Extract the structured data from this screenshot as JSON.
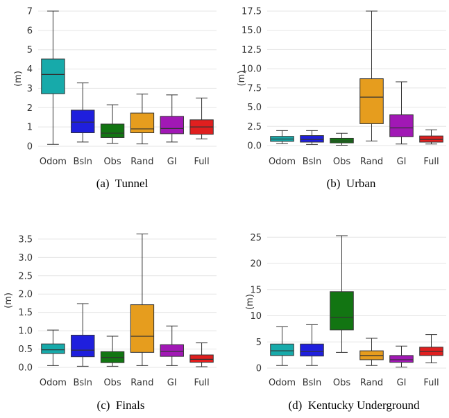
{
  "chart_data": [
    {
      "type": "box",
      "panel_key": "a",
      "caption": "(a)  Tunnel",
      "ylabel": "(m)",
      "ylim": [
        0,
        7
      ],
      "yticks": [
        "0",
        "1",
        "2",
        "3",
        "4",
        "5",
        "6",
        "7"
      ],
      "ytick_values": [
        0,
        1,
        2,
        3,
        4,
        5,
        6,
        7
      ],
      "categories": [
        "Odom",
        "Bsln",
        "Obs",
        "Rand",
        "GI",
        "Full"
      ],
      "boxes": [
        {
          "min": 0.1,
          "q1": 2.72,
          "median": 3.72,
          "q3": 4.52,
          "max": 7.0
        },
        {
          "min": 0.22,
          "q1": 0.7,
          "median": 1.25,
          "q3": 1.87,
          "max": 3.28
        },
        {
          "min": 0.15,
          "q1": 0.45,
          "median": 0.68,
          "q3": 1.15,
          "max": 2.15
        },
        {
          "min": 0.12,
          "q1": 0.7,
          "median": 0.9,
          "q3": 1.72,
          "max": 2.7
        },
        {
          "min": 0.22,
          "q1": 0.65,
          "median": 0.92,
          "q3": 1.55,
          "max": 2.66
        },
        {
          "min": 0.38,
          "q1": 0.62,
          "median": 1.0,
          "q3": 1.37,
          "max": 2.5
        }
      ]
    },
    {
      "type": "box",
      "panel_key": "b",
      "caption": "(b)  Urban",
      "ylabel": "(m)",
      "ylim": [
        0,
        17.5
      ],
      "yticks": [
        "0.0",
        "2.5",
        "5.0",
        "7.5",
        "10.0",
        "12.5",
        "15.0",
        "17.5"
      ],
      "ytick_values": [
        0,
        2.5,
        5,
        7.5,
        10,
        12.5,
        15,
        17.5
      ],
      "categories": [
        "Odom",
        "Bsln",
        "Obs",
        "Rand",
        "GI",
        "Full"
      ],
      "boxes": [
        {
          "min": 0.25,
          "q1": 0.55,
          "median": 0.85,
          "q3": 1.2,
          "max": 1.95
        },
        {
          "min": 0.15,
          "q1": 0.45,
          "median": 0.8,
          "q3": 1.3,
          "max": 1.95
        },
        {
          "min": 0.05,
          "q1": 0.35,
          "median": 0.6,
          "q3": 0.95,
          "max": 1.6
        },
        {
          "min": 0.6,
          "q1": 2.85,
          "median": 6.3,
          "q3": 8.7,
          "max": 17.5
        },
        {
          "min": 0.2,
          "q1": 1.15,
          "median": 2.3,
          "q3": 4.0,
          "max": 8.3
        },
        {
          "min": 0.2,
          "q1": 0.45,
          "median": 0.8,
          "q3": 1.25,
          "max": 2.05
        }
      ]
    },
    {
      "type": "box",
      "panel_key": "c",
      "caption": "(c)  Finals",
      "ylabel": "(m)",
      "ylim": [
        0,
        3.65
      ],
      "yticks": [
        "0.0",
        "0.5",
        "1.0",
        "1.5",
        "2.0",
        "2.5",
        "3.0",
        "3.5"
      ],
      "ytick_values": [
        0,
        0.5,
        1,
        1.5,
        2,
        2.5,
        3,
        3.5
      ],
      "categories": [
        "Odom",
        "Bsln",
        "Obs",
        "Rand",
        "GI",
        "Full"
      ],
      "boxes": [
        {
          "min": 0.05,
          "q1": 0.38,
          "median": 0.48,
          "q3": 0.64,
          "max": 1.02
        },
        {
          "min": 0.03,
          "q1": 0.29,
          "median": 0.47,
          "q3": 0.88,
          "max": 1.74
        },
        {
          "min": 0.03,
          "q1": 0.13,
          "median": 0.27,
          "q3": 0.43,
          "max": 0.85
        },
        {
          "min": 0.05,
          "q1": 0.41,
          "median": 0.85,
          "q3": 1.71,
          "max": 3.64
        },
        {
          "min": 0.05,
          "q1": 0.3,
          "median": 0.44,
          "q3": 0.62,
          "max": 1.13
        },
        {
          "min": 0.02,
          "q1": 0.14,
          "median": 0.22,
          "q3": 0.34,
          "max": 0.67
        }
      ]
    },
    {
      "type": "box",
      "panel_key": "d",
      "caption": "(d)  Kentucky Underground",
      "ylabel": "(m)",
      "ylim": [
        0,
        25.3
      ],
      "yticks": [
        "0",
        "5",
        "10",
        "15",
        "20",
        "25"
      ],
      "ytick_values": [
        0,
        5,
        10,
        15,
        20,
        25
      ],
      "categories": [
        "Odom",
        "Bsln",
        "Obs",
        "Rand",
        "GI",
        "Full"
      ],
      "boxes": [
        {
          "min": 0.5,
          "q1": 2.4,
          "median": 3.3,
          "q3": 4.6,
          "max": 7.9
        },
        {
          "min": 0.5,
          "q1": 2.3,
          "median": 3.2,
          "q3": 4.6,
          "max": 8.3
        },
        {
          "min": 3.0,
          "q1": 7.3,
          "median": 9.7,
          "q3": 14.6,
          "max": 25.3
        },
        {
          "min": 0.5,
          "q1": 1.6,
          "median": 2.4,
          "q3": 3.3,
          "max": 5.7
        },
        {
          "min": 0.2,
          "q1": 1.1,
          "median": 1.6,
          "q3": 2.4,
          "max": 4.2
        },
        {
          "min": 1.0,
          "q1": 2.4,
          "median": 3.2,
          "q3": 4.0,
          "max": 6.4
        }
      ]
    }
  ],
  "colors": {
    "Odom": "#17aaaa",
    "Bsln": "#1f1fdd",
    "Obs": "#127512",
    "Rand": "#e69d1e",
    "GI": "#a118b5",
    "Full": "#e01f1f"
  }
}
